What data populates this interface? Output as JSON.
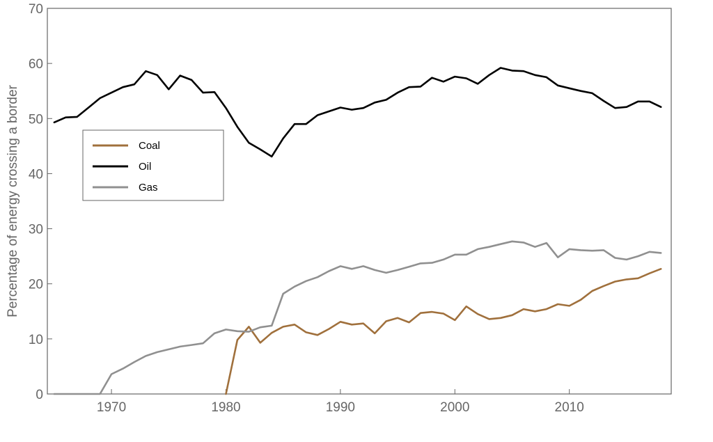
{
  "chart_data": {
    "type": "line",
    "title": "",
    "xlabel": "",
    "ylabel": "Percentage of energy crossing a border",
    "xlim": [
      1964.4,
      2018.9
    ],
    "ylim": [
      0,
      70
    ],
    "xticks": [
      1970,
      1980,
      1990,
      2000,
      2010
    ],
    "yticks": [
      0,
      10,
      20,
      30,
      40,
      50,
      60,
      70
    ],
    "grid": false,
    "legend_position": "upper-left",
    "series": [
      {
        "name": "Coal",
        "color": "#a0703c",
        "x": [
          1980,
          1981,
          1982,
          1983,
          1984,
          1985,
          1986,
          1987,
          1988,
          1989,
          1990,
          1991,
          1992,
          1993,
          1994,
          1995,
          1996,
          1997,
          1998,
          1999,
          2000,
          2001,
          2002,
          2003,
          2004,
          2005,
          2006,
          2007,
          2008,
          2009,
          2010,
          2011,
          2012,
          2013,
          2014,
          2015,
          2016,
          2017,
          2018
        ],
        "y": [
          0,
          9.8,
          12.2,
          9.3,
          11.1,
          12.2,
          12.6,
          11.2,
          10.7,
          11.8,
          13.1,
          12.6,
          12.8,
          11.0,
          13.2,
          13.8,
          13.0,
          14.7,
          14.9,
          14.6,
          13.4,
          15.9,
          14.5,
          13.6,
          13.8,
          14.3,
          15.4,
          15.0,
          15.4,
          16.3,
          16.0,
          17.1,
          18.7,
          19.6,
          20.4,
          20.8,
          21.0,
          21.9,
          22.7
        ]
      },
      {
        "name": "Oil",
        "color": "#000000",
        "x": [
          1965,
          1966,
          1967,
          1968,
          1969,
          1970,
          1971,
          1972,
          1973,
          1974,
          1975,
          1976,
          1977,
          1978,
          1979,
          1980,
          1981,
          1982,
          1983,
          1984,
          1985,
          1986,
          1987,
          1988,
          1989,
          1990,
          1991,
          1992,
          1993,
          1994,
          1995,
          1996,
          1997,
          1998,
          1999,
          2000,
          2001,
          2002,
          2003,
          2004,
          2005,
          2006,
          2007,
          2008,
          2009,
          2010,
          2011,
          2012,
          2013,
          2014,
          2015,
          2016,
          2017,
          2018
        ],
        "y": [
          49.3,
          50.2,
          50.3,
          52.0,
          53.7,
          54.7,
          55.7,
          56.2,
          58.6,
          57.9,
          55.3,
          57.8,
          57.0,
          54.7,
          54.8,
          51.9,
          48.5,
          45.6,
          44.4,
          43.1,
          46.4,
          49.0,
          49.0,
          50.6,
          51.3,
          52.0,
          51.6,
          51.9,
          52.9,
          53.4,
          54.7,
          55.7,
          55.8,
          57.4,
          56.7,
          57.6,
          57.3,
          56.3,
          57.9,
          59.2,
          58.7,
          58.6,
          57.9,
          57.5,
          56.0,
          55.5,
          55.0,
          54.6,
          53.2,
          51.9,
          52.1,
          53.1,
          53.1,
          52.1
        ]
      },
      {
        "name": "Gas",
        "color": "#909090",
        "x": [
          1965,
          1969,
          1970,
          1971,
          1972,
          1973,
          1974,
          1975,
          1976,
          1977,
          1978,
          1979,
          1980,
          1981,
          1982,
          1983,
          1984,
          1985,
          1986,
          1987,
          1988,
          1989,
          1990,
          1991,
          1992,
          1993,
          1994,
          1995,
          1996,
          1997,
          1998,
          1999,
          2000,
          2001,
          2002,
          2003,
          2004,
          2005,
          2006,
          2007,
          2008,
          2009,
          2010,
          2011,
          2012,
          2013,
          2014,
          2015,
          2016,
          2017,
          2018
        ],
        "y": [
          0,
          0,
          3.6,
          4.6,
          5.8,
          6.9,
          7.6,
          8.1,
          8.6,
          8.9,
          9.2,
          11.0,
          11.7,
          11.4,
          11.3,
          12.1,
          12.4,
          18.2,
          19.5,
          20.5,
          21.2,
          22.3,
          23.2,
          22.7,
          23.2,
          22.5,
          22.0,
          22.5,
          23.1,
          23.7,
          23.8,
          24.4,
          25.3,
          25.3,
          26.3,
          26.7,
          27.2,
          27.7,
          27.5,
          26.7,
          27.4,
          24.8,
          26.3,
          26.1,
          26.0,
          26.1,
          24.7,
          24.4,
          25.0,
          25.8,
          25.6
        ]
      }
    ]
  }
}
